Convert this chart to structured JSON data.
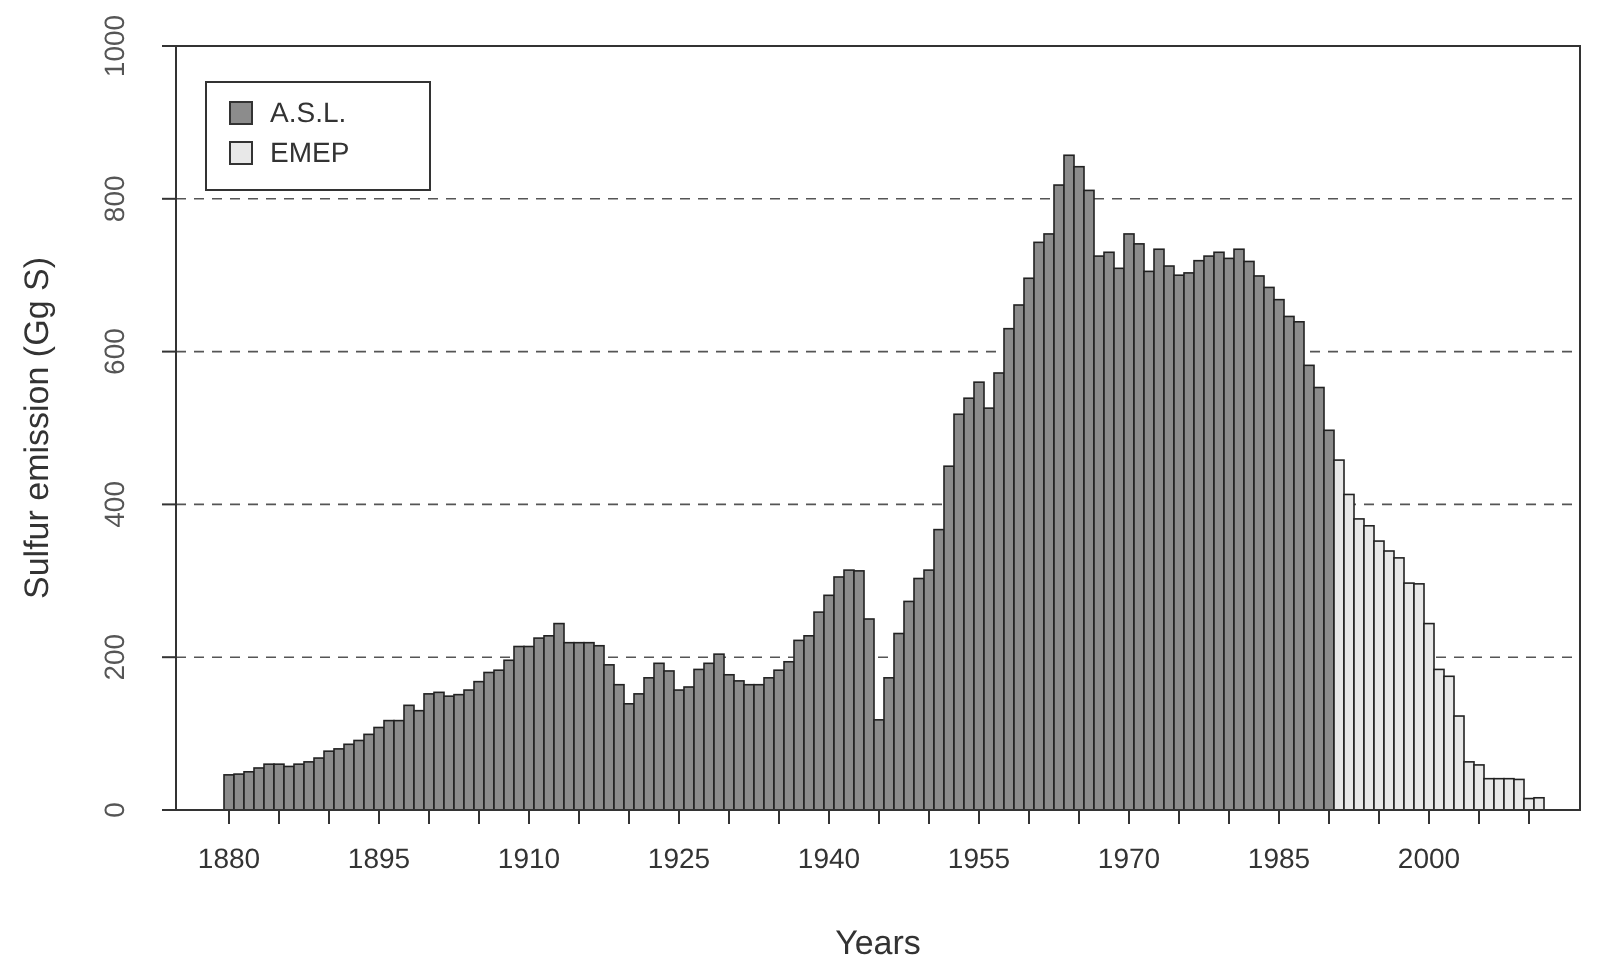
{
  "chart_data": {
    "type": "bar",
    "xlabel": "Years",
    "ylabel": "Sulfur emission (Gg S)",
    "xlim": [
      1874.7,
      2015.1
    ],
    "ylim": [
      0,
      1000
    ],
    "xticks": [
      1880,
      {
        "value": 1885,
        "label": null
      },
      {
        "value": 1890,
        "label": null
      },
      1895,
      {
        "value": 1900,
        "label": null
      },
      {
        "value": 1905,
        "label": null
      },
      1910,
      {
        "value": 1915,
        "label": null
      },
      {
        "value": 1920,
        "label": null
      },
      1925,
      {
        "value": 1930,
        "label": null
      },
      {
        "value": 1935,
        "label": null
      },
      1940,
      {
        "value": 1945,
        "label": null
      },
      {
        "value": 1950,
        "label": null
      },
      1955,
      {
        "value": 1960,
        "label": null
      },
      {
        "value": 1965,
        "label": null
      },
      1970,
      {
        "value": 1975,
        "label": null
      },
      {
        "value": 1980,
        "label": null
      },
      1985,
      {
        "value": 1990,
        "label": null
      },
      {
        "value": 1995,
        "label": null
      },
      2000,
      {
        "value": 2005,
        "label": null
      },
      {
        "value": 2010,
        "label": null
      }
    ],
    "yticks": [
      0,
      200,
      400,
      600,
      800,
      1000
    ],
    "grid": "y",
    "legend": "top left",
    "series": [
      {
        "name": "A.S.L.",
        "color": "#8c8c8c",
        "x": [
          1880,
          1881,
          1882,
          1883,
          1884,
          1885,
          1886,
          1887,
          1888,
          1889,
          1890,
          1891,
          1892,
          1893,
          1894,
          1895,
          1896,
          1897,
          1898,
          1899,
          1900,
          1901,
          1902,
          1903,
          1904,
          1905,
          1906,
          1907,
          1908,
          1909,
          1910,
          1911,
          1912,
          1913,
          1914,
          1915,
          1916,
          1917,
          1918,
          1919,
          1920,
          1921,
          1922,
          1923,
          1924,
          1925,
          1926,
          1927,
          1928,
          1929,
          1930,
          1931,
          1932,
          1933,
          1934,
          1935,
          1936,
          1937,
          1938,
          1939,
          1940,
          1941,
          1942,
          1943,
          1944,
          1945,
          1946,
          1947,
          1948,
          1949,
          1950,
          1951,
          1952,
          1953,
          1954,
          1955,
          1956,
          1957,
          1958,
          1959,
          1960,
          1961,
          1962,
          1963,
          1964,
          1965,
          1966,
          1967,
          1968,
          1969,
          1970,
          1971,
          1972,
          1973,
          1974,
          1975,
          1976,
          1977,
          1978,
          1979,
          1980,
          1981,
          1982,
          1983,
          1984,
          1985,
          1986,
          1987,
          1988,
          1989,
          1990
        ],
        "values": [
          46,
          47,
          50,
          55,
          60,
          60,
          57,
          60,
          63,
          68,
          77,
          80,
          86,
          91,
          99,
          108,
          117,
          117,
          137,
          130,
          152,
          154,
          149,
          151,
          157,
          168,
          180,
          183,
          196,
          214,
          214,
          225,
          228,
          244,
          219,
          219,
          219,
          215,
          190,
          164,
          139,
          152,
          173,
          192,
          182,
          157,
          161,
          184,
          192,
          204,
          177,
          169,
          164,
          164,
          173,
          183,
          194,
          222,
          228,
          259,
          281,
          305,
          314,
          313,
          250,
          118,
          173,
          231,
          273,
          303,
          314,
          367,
          450,
          518,
          539,
          560,
          526,
          572,
          630,
          661,
          696,
          743,
          754,
          818,
          857,
          842,
          811,
          725,
          730,
          709,
          754,
          741,
          705,
          734,
          712,
          700,
          703,
          719,
          725,
          730,
          722,
          734,
          718,
          699,
          684,
          668,
          646,
          639,
          582,
          553,
          497
        ]
      },
      {
        "name": "EMEP",
        "color": "#e8e8e8",
        "x": [
          1991,
          1992,
          1993,
          1994,
          1995,
          1996,
          1997,
          1998,
          1999,
          2000,
          2001,
          2002,
          2003,
          2004,
          2005,
          2006,
          2007,
          2008,
          2009,
          2010,
          2011
        ],
        "values": [
          458,
          413,
          381,
          372,
          352,
          339,
          330,
          297,
          296,
          244,
          184,
          175,
          123,
          63,
          59,
          41,
          41,
          41,
          40,
          15,
          16
        ]
      }
    ]
  }
}
